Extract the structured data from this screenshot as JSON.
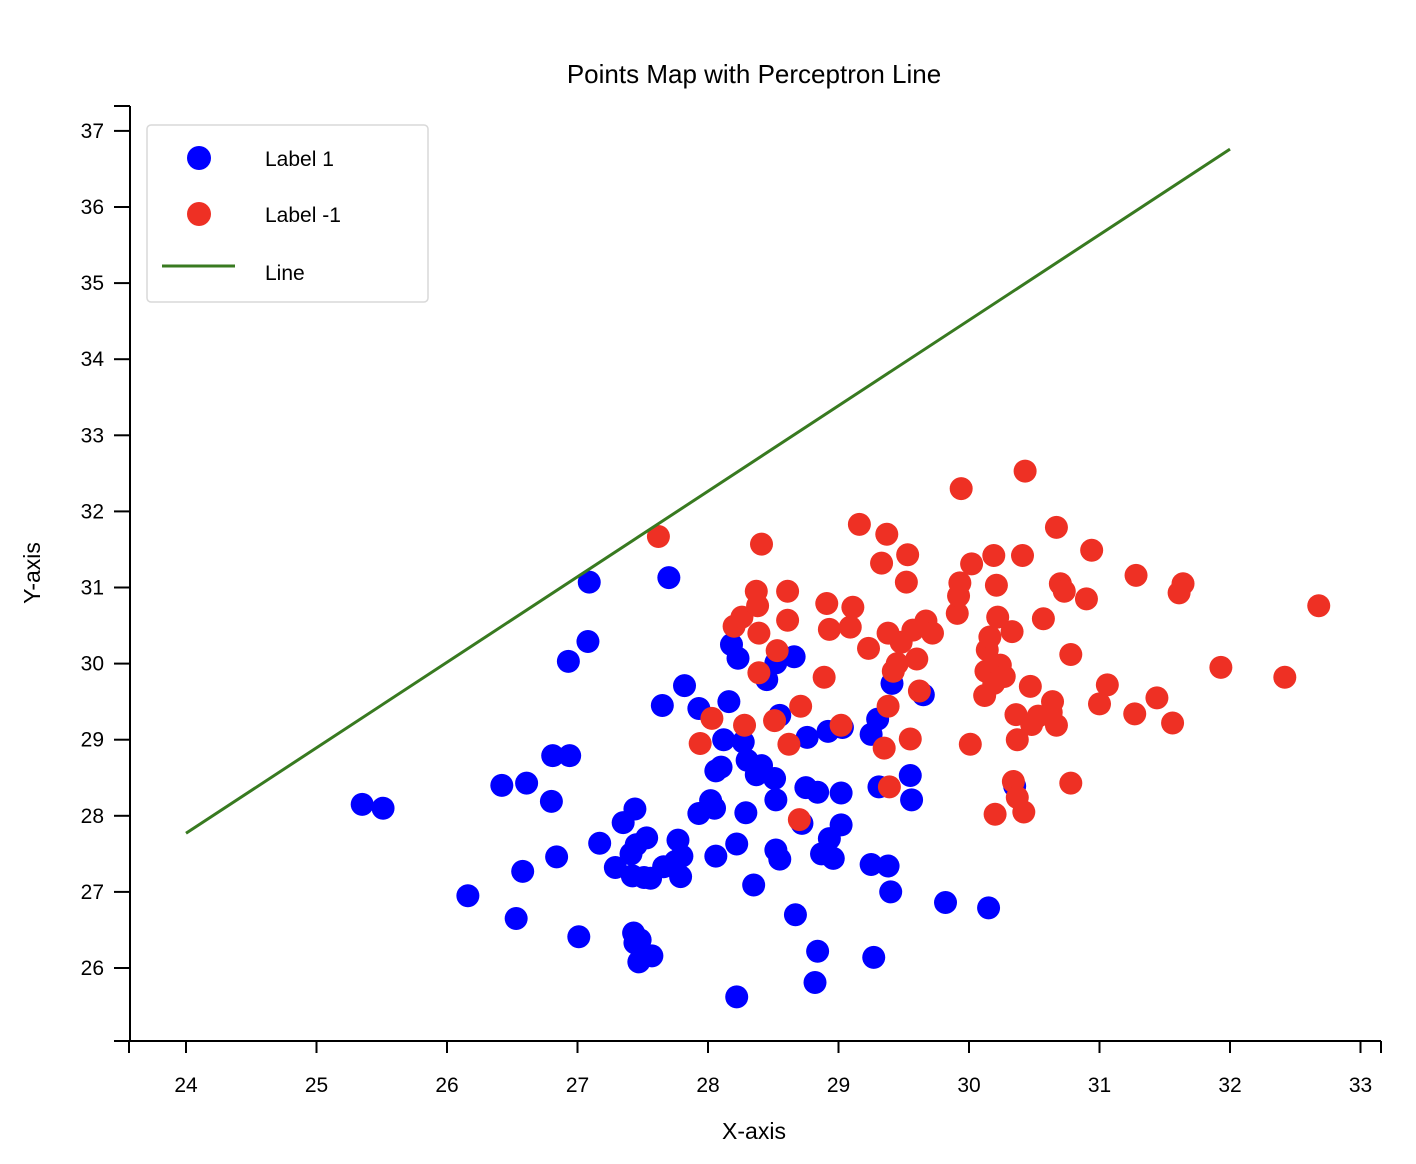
{
  "chart_data": {
    "type": "scatter",
    "title": "Points Map with Perceptron Line",
    "xlabel": "X-axis",
    "ylabel": "Y-axis",
    "xlim": [
      23.57,
      33.16
    ],
    "ylim": [
      25.03,
      37.32
    ],
    "xticks": [
      24,
      25,
      26,
      27,
      28,
      29,
      30,
      31,
      32,
      33
    ],
    "yticks": [
      26,
      27,
      28,
      29,
      30,
      31,
      32,
      33,
      34,
      35,
      36,
      37
    ],
    "grid": false,
    "legend_position": "top-left",
    "series": [
      {
        "name": "Label 1",
        "kind": "points",
        "color": "#0000ff",
        "points": [
          [
            25.35,
            28.15
          ],
          [
            25.51,
            28.1
          ],
          [
            26.16,
            26.95
          ],
          [
            26.42,
            28.4
          ],
          [
            26.53,
            26.65
          ],
          [
            26.58,
            27.27
          ],
          [
            26.61,
            28.43
          ],
          [
            26.8,
            28.19
          ],
          [
            26.84,
            27.46
          ],
          [
            26.81,
            28.79
          ],
          [
            26.94,
            28.79
          ],
          [
            26.93,
            30.03
          ],
          [
            27.01,
            26.41
          ],
          [
            27.08,
            30.29
          ],
          [
            27.09,
            31.07
          ],
          [
            27.17,
            27.64
          ],
          [
            27.29,
            27.32
          ],
          [
            27.35,
            27.91
          ],
          [
            27.41,
            27.5
          ],
          [
            27.42,
            27.21
          ],
          [
            27.44,
            28.09
          ],
          [
            27.45,
            27.62
          ],
          [
            27.43,
            26.46
          ],
          [
            27.44,
            26.33
          ],
          [
            27.48,
            26.37
          ],
          [
            27.47,
            26.08
          ],
          [
            27.51,
            27.19
          ],
          [
            27.53,
            27.71
          ],
          [
            27.56,
            27.18
          ],
          [
            27.57,
            26.16
          ],
          [
            27.65,
            29.45
          ],
          [
            27.66,
            27.33
          ],
          [
            27.7,
            31.13
          ],
          [
            27.75,
            27.4
          ],
          [
            27.77,
            27.68
          ],
          [
            27.79,
            27.2
          ],
          [
            27.8,
            27.47
          ],
          [
            27.82,
            29.71
          ],
          [
            27.93,
            29.41
          ],
          [
            27.93,
            28.03
          ],
          [
            28.02,
            28.2
          ],
          [
            28.05,
            28.1
          ],
          [
            28.06,
            28.59
          ],
          [
            28.06,
            27.47
          ],
          [
            28.1,
            28.64
          ],
          [
            28.12,
            29.0
          ],
          [
            28.16,
            29.5
          ],
          [
            28.18,
            30.25
          ],
          [
            28.22,
            27.63
          ],
          [
            28.22,
            25.62
          ],
          [
            28.23,
            30.07
          ],
          [
            28.27,
            28.97
          ],
          [
            28.29,
            28.04
          ],
          [
            28.3,
            28.73
          ],
          [
            28.35,
            27.09
          ],
          [
            28.37,
            28.54
          ],
          [
            28.41,
            28.66
          ],
          [
            28.45,
            29.79
          ],
          [
            28.51,
            28.49
          ],
          [
            28.52,
            28.21
          ],
          [
            28.52,
            30.01
          ],
          [
            28.52,
            27.55
          ],
          [
            28.55,
            27.43
          ],
          [
            28.55,
            29.32
          ],
          [
            28.66,
            30.09
          ],
          [
            28.67,
            26.7
          ],
          [
            28.72,
            27.9
          ],
          [
            28.75,
            28.37
          ],
          [
            28.76,
            29.03
          ],
          [
            28.82,
            25.81
          ],
          [
            28.84,
            28.31
          ],
          [
            28.84,
            26.22
          ],
          [
            28.87,
            27.5
          ],
          [
            28.92,
            29.11
          ],
          [
            28.93,
            27.7
          ],
          [
            28.96,
            27.44
          ],
          [
            29.02,
            27.88
          ],
          [
            29.02,
            28.3
          ],
          [
            29.03,
            29.16
          ],
          [
            29.25,
            29.07
          ],
          [
            29.25,
            27.36
          ],
          [
            29.27,
            26.14
          ],
          [
            29.3,
            29.27
          ],
          [
            29.31,
            28.38
          ],
          [
            29.38,
            27.34
          ],
          [
            29.4,
            27.0
          ],
          [
            29.41,
            29.74
          ],
          [
            29.55,
            28.53
          ],
          [
            29.56,
            28.21
          ],
          [
            29.65,
            29.59
          ],
          [
            29.82,
            26.86
          ],
          [
            30.15,
            26.79
          ],
          [
            30.35,
            28.39
          ]
        ]
      },
      {
        "name": "Label -1",
        "kind": "points",
        "color": "#ee3024",
        "points": [
          [
            27.62,
            31.67
          ],
          [
            27.94,
            28.95
          ],
          [
            28.03,
            29.28
          ],
          [
            28.2,
            30.49
          ],
          [
            28.26,
            30.61
          ],
          [
            28.28,
            29.19
          ],
          [
            28.37,
            30.95
          ],
          [
            28.38,
            30.76
          ],
          [
            28.39,
            30.4
          ],
          [
            28.39,
            29.88
          ],
          [
            28.41,
            31.57
          ],
          [
            28.51,
            29.25
          ],
          [
            28.53,
            30.17
          ],
          [
            28.61,
            30.95
          ],
          [
            28.62,
            28.94
          ],
          [
            28.61,
            30.57
          ],
          [
            28.7,
            27.95
          ],
          [
            28.71,
            29.44
          ],
          [
            28.89,
            29.82
          ],
          [
            28.91,
            30.79
          ],
          [
            28.93,
            30.45
          ],
          [
            29.02,
            29.19
          ],
          [
            29.09,
            30.48
          ],
          [
            29.11,
            30.74
          ],
          [
            29.16,
            31.83
          ],
          [
            29.23,
            30.2
          ],
          [
            29.33,
            31.32
          ],
          [
            29.35,
            28.89
          ],
          [
            29.37,
            31.7
          ],
          [
            29.38,
            29.44
          ],
          [
            29.38,
            30.4
          ],
          [
            29.39,
            28.38
          ],
          [
            29.42,
            29.9
          ],
          [
            29.45,
            30.0
          ],
          [
            29.48,
            30.28
          ],
          [
            29.52,
            31.07
          ],
          [
            29.53,
            31.43
          ],
          [
            29.55,
            29.01
          ],
          [
            29.57,
            30.44
          ],
          [
            29.6,
            30.06
          ],
          [
            29.62,
            29.64
          ],
          [
            29.67,
            30.56
          ],
          [
            29.72,
            30.4
          ],
          [
            29.91,
            30.66
          ],
          [
            29.92,
            30.89
          ],
          [
            29.93,
            31.06
          ],
          [
            29.94,
            32.3
          ],
          [
            30.01,
            28.94
          ],
          [
            30.02,
            31.31
          ],
          [
            30.12,
            29.58
          ],
          [
            30.13,
            29.9
          ],
          [
            30.14,
            30.18
          ],
          [
            30.16,
            30.35
          ],
          [
            30.19,
            29.74
          ],
          [
            30.19,
            31.42
          ],
          [
            30.2,
            28.02
          ],
          [
            30.21,
            31.03
          ],
          [
            30.22,
            30.61
          ],
          [
            30.24,
            29.98
          ],
          [
            30.27,
            29.83
          ],
          [
            30.33,
            30.42
          ],
          [
            30.34,
            28.45
          ],
          [
            30.37,
            28.24
          ],
          [
            30.36,
            29.33
          ],
          [
            30.37,
            29.0
          ],
          [
            30.41,
            31.42
          ],
          [
            30.42,
            28.05
          ],
          [
            30.43,
            32.53
          ],
          [
            30.47,
            29.7
          ],
          [
            30.48,
            29.2
          ],
          [
            30.53,
            29.31
          ],
          [
            30.57,
            30.59
          ],
          [
            30.63,
            29.36
          ],
          [
            30.64,
            29.5
          ],
          [
            30.67,
            29.19
          ],
          [
            30.67,
            31.79
          ],
          [
            30.7,
            31.05
          ],
          [
            30.73,
            30.95
          ],
          [
            30.78,
            28.43
          ],
          [
            30.78,
            30.12
          ],
          [
            30.9,
            30.85
          ],
          [
            30.94,
            31.49
          ],
          [
            31.0,
            29.47
          ],
          [
            31.06,
            29.72
          ],
          [
            31.27,
            29.34
          ],
          [
            31.28,
            31.16
          ],
          [
            31.44,
            29.55
          ],
          [
            31.56,
            29.22
          ],
          [
            31.61,
            30.93
          ],
          [
            31.64,
            31.05
          ],
          [
            31.93,
            29.95
          ],
          [
            32.42,
            29.82
          ],
          [
            32.68,
            30.76
          ]
        ]
      },
      {
        "name": "Line",
        "kind": "line",
        "color": "#387a20",
        "x": [
          24.0,
          32.0
        ],
        "y": [
          27.77,
          36.76
        ]
      }
    ]
  }
}
